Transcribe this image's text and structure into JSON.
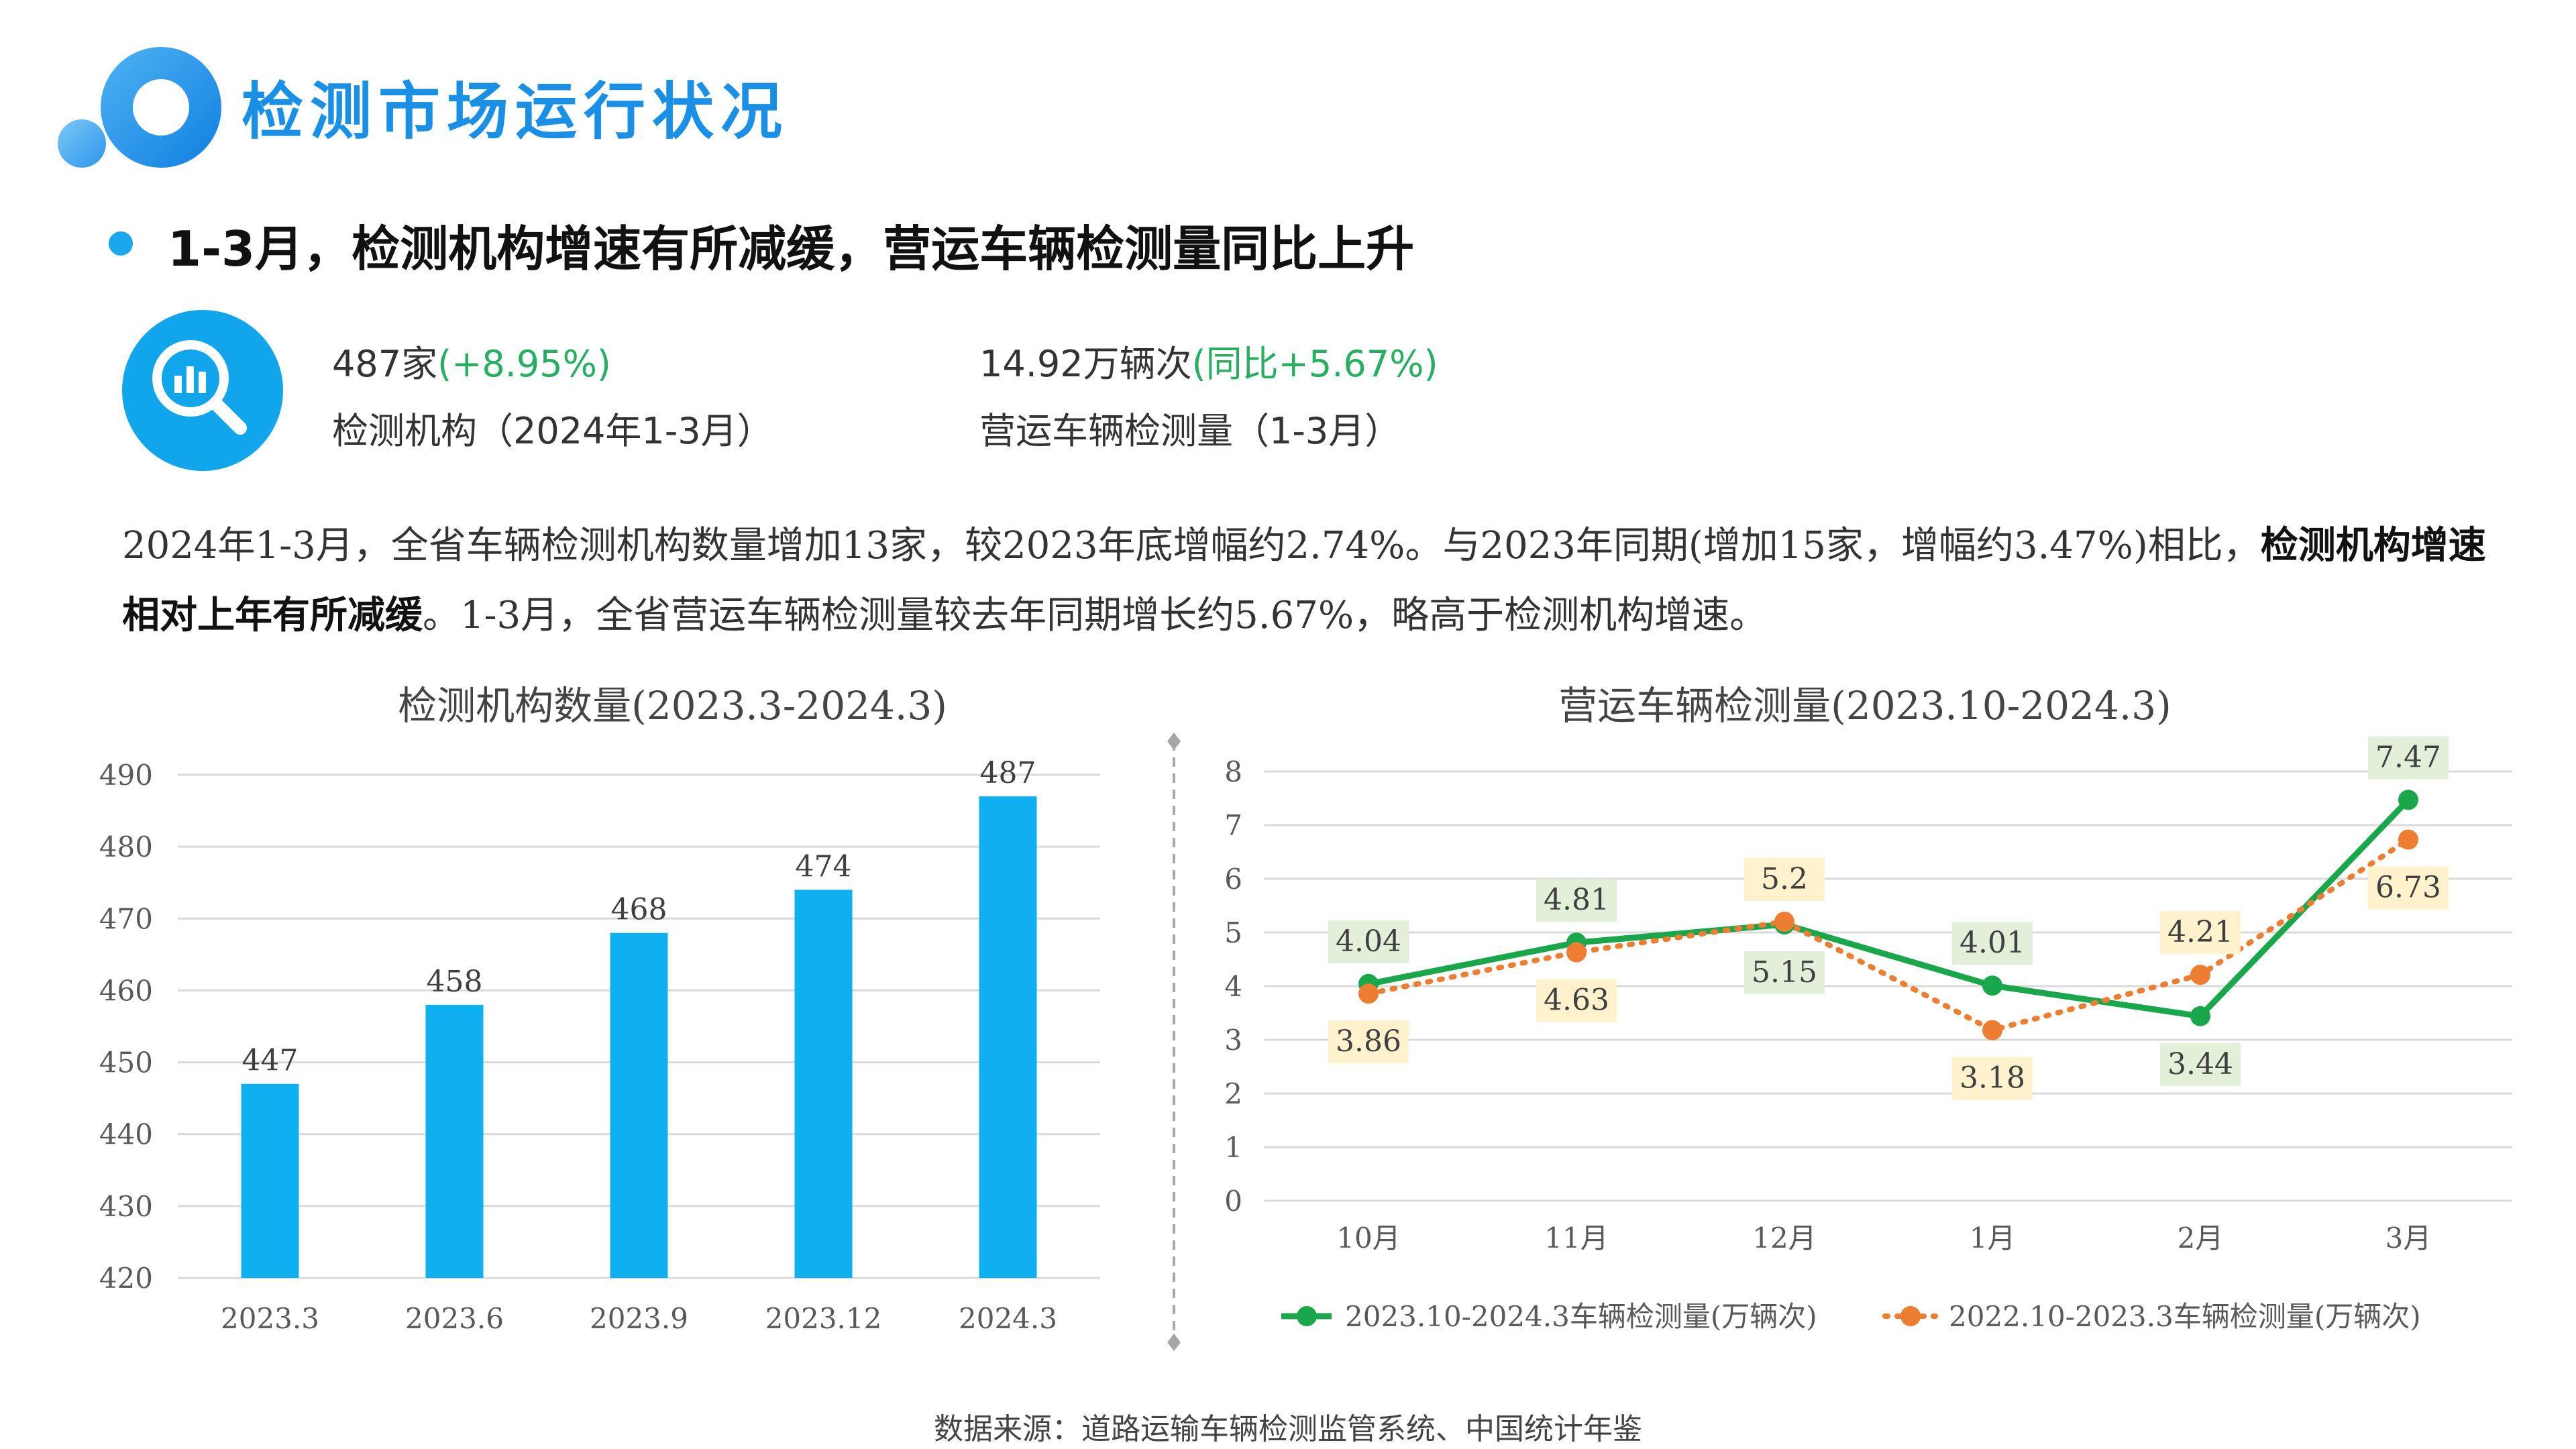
{
  "header": {
    "title": "检测市场运行状况"
  },
  "headline": "1-3月，检测机构增速有所减缓，营运车辆检测量同比上升",
  "kpis": [
    {
      "value": "487家",
      "change": "(+8.95%)",
      "label": "检测机构（2024年1-3月）"
    },
    {
      "value": "14.92万辆次",
      "change": "(同比+5.67%)",
      "label": "营运车辆检测量（1-3月）"
    }
  ],
  "kpi_icon": "magnifier-bar-chart-icon",
  "paragraph": {
    "part1": "2024年1-3月，全省车辆检测机构数量增加13家，较2023年底增幅约2.74%。与2023年同期(增加15家，增幅约3.47%)相比，",
    "part2": "检测机构增速相对上年有所减缓",
    "part3": "。1-3月，全省营运车辆检测量较去年同期增长约5.67%，略高于检测机构增速。"
  },
  "source": "数据来源：道路运输车辆检测监管系统、中国统计年鉴",
  "colors": {
    "bar": "#0fb0ef",
    "series_current": "#1aa64b",
    "series_previous": "#ed7d31",
    "title_blue": "#1a8fe6"
  },
  "chart_data": [
    {
      "type": "bar",
      "title": "检测机构数量(2023.3-2024.3)",
      "categories": [
        "2023.3",
        "2023.6",
        "2023.9",
        "2023.12",
        "2024.3"
      ],
      "values": [
        447,
        458,
        468,
        474,
        487
      ],
      "ylim": [
        420,
        490
      ],
      "yticks": [
        420,
        430,
        440,
        450,
        460,
        470,
        480,
        490
      ],
      "grid": true
    },
    {
      "type": "line",
      "title": "营运车辆检测量(2023.10-2024.3)",
      "categories": [
        "10月",
        "11月",
        "12月",
        "1月",
        "2月",
        "3月"
      ],
      "series": [
        {
          "name": "2023.10-2024.3车辆检测量(万辆次)",
          "style": "solid",
          "values": [
            4.04,
            4.81,
            5.15,
            4.01,
            3.44,
            7.47
          ]
        },
        {
          "name": "2022.10-2023.3车辆检测量(万辆次)",
          "style": "dotted",
          "values": [
            3.86,
            4.63,
            5.2,
            3.18,
            4.21,
            6.73
          ]
        }
      ],
      "ylim": [
        0,
        8
      ],
      "yticks": [
        0,
        1,
        2,
        3,
        4,
        5,
        6,
        7,
        8
      ],
      "grid": true,
      "legend": "bottom"
    }
  ]
}
